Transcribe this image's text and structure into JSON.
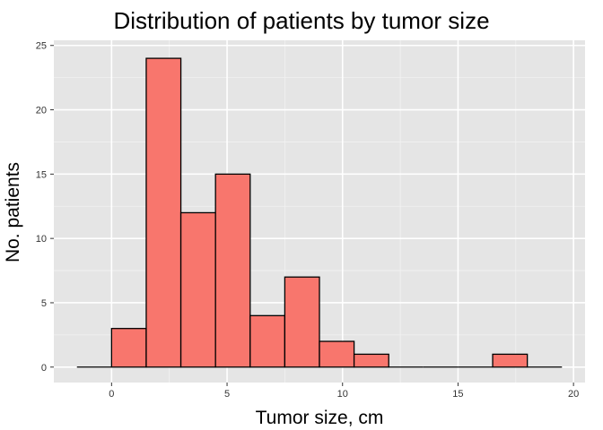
{
  "chart_data": {
    "type": "histogram",
    "title": "Distribution of patients by tumor size",
    "xlabel": "Tumor size, cm",
    "ylabel": "No. patients",
    "xlim": [
      -2.5,
      20.5
    ],
    "ylim": [
      -1.2,
      25.4
    ],
    "x_ticks": [
      0,
      5,
      10,
      15,
      20
    ],
    "y_ticks": [
      0,
      5,
      10,
      15,
      20,
      25
    ],
    "bin_width": 1.5,
    "bins": [
      {
        "start": -1.5,
        "end": 0.0,
        "count": 0
      },
      {
        "start": 0.0,
        "end": 1.5,
        "count": 3
      },
      {
        "start": 1.5,
        "end": 3.0,
        "count": 24
      },
      {
        "start": 3.0,
        "end": 4.5,
        "count": 12
      },
      {
        "start": 4.5,
        "end": 6.0,
        "count": 15
      },
      {
        "start": 6.0,
        "end": 7.5,
        "count": 4
      },
      {
        "start": 7.5,
        "end": 9.0,
        "count": 7
      },
      {
        "start": 9.0,
        "end": 10.5,
        "count": 2
      },
      {
        "start": 10.5,
        "end": 12.0,
        "count": 1
      },
      {
        "start": 12.0,
        "end": 13.5,
        "count": 0
      },
      {
        "start": 13.5,
        "end": 15.0,
        "count": 0
      },
      {
        "start": 15.0,
        "end": 16.5,
        "count": 0
      },
      {
        "start": 16.5,
        "end": 18.0,
        "count": 1
      },
      {
        "start": 18.0,
        "end": 19.5,
        "count": 0
      }
    ],
    "grid": true,
    "colors": {
      "bar_fill": "#F8766D",
      "bar_outline": "#000000",
      "panel_background": "#E5E5E5",
      "grid_major": "#FFFFFF",
      "grid_minor": "#F2F2F2"
    }
  }
}
